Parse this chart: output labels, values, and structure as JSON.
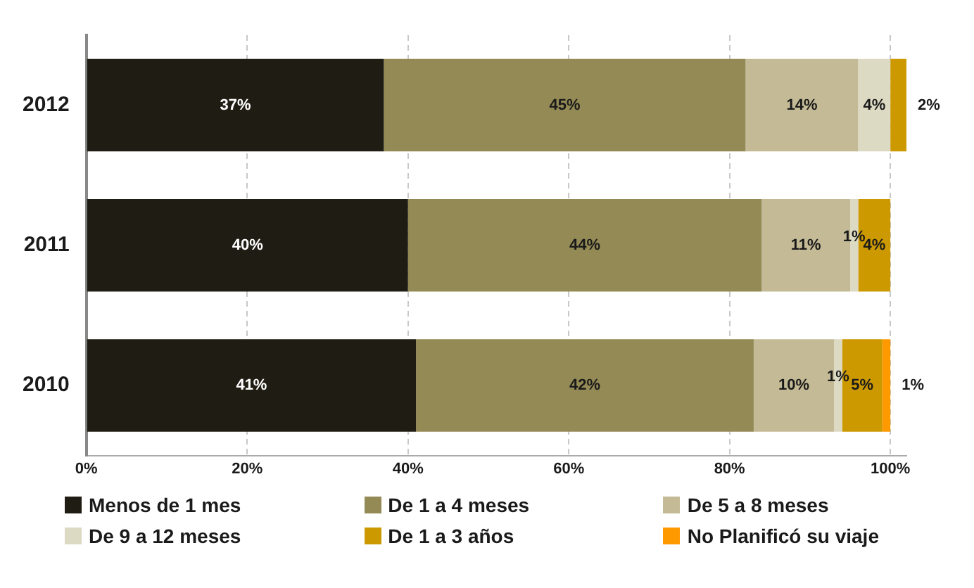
{
  "chart_data": {
    "type": "bar",
    "orientation": "horizontal",
    "stacked": true,
    "categories": [
      "2012",
      "2011",
      "2010"
    ],
    "series": [
      {
        "name": "Menos de 1 mes",
        "color": "#1f1d13",
        "values": [
          37,
          40,
          41
        ],
        "value_labels": [
          "37%",
          "40%",
          "41%"
        ]
      },
      {
        "name": "De 1 a 4 meses",
        "color": "#948a55",
        "values": [
          45,
          44,
          42
        ],
        "value_labels": [
          "45%",
          "44%",
          "42%"
        ]
      },
      {
        "name": "De 5 a 8 meses",
        "color": "#c4bb96",
        "values": [
          14,
          11,
          10
        ],
        "value_labels": [
          "14%",
          "11%",
          "10%"
        ]
      },
      {
        "name": "De 9 a 12 meses",
        "color": "#dddac4",
        "values": [
          4,
          1,
          1
        ],
        "value_labels": [
          "4%",
          "1%",
          "1%"
        ]
      },
      {
        "name": "De 1 a 3 años",
        "color": "#cc9900",
        "values": [
          2,
          4,
          5
        ],
        "value_labels": [
          "2%",
          "4%",
          "5%"
        ]
      },
      {
        "name": "No Planificó su viaje",
        "color": "#ff9900",
        "values": [
          0,
          0,
          1
        ],
        "value_labels": [
          null,
          null,
          "1%"
        ]
      }
    ],
    "xlim": [
      0,
      102
    ],
    "xticks": [
      {
        "value": 0,
        "label": "0%"
      },
      {
        "value": 20,
        "label": "20%"
      },
      {
        "value": 40,
        "label": "40%"
      },
      {
        "value": 60,
        "label": "60%"
      },
      {
        "value": 80,
        "label": "80%"
      },
      {
        "value": 100,
        "label": "100%"
      }
    ],
    "grid": "x",
    "legend": "bottom"
  }
}
